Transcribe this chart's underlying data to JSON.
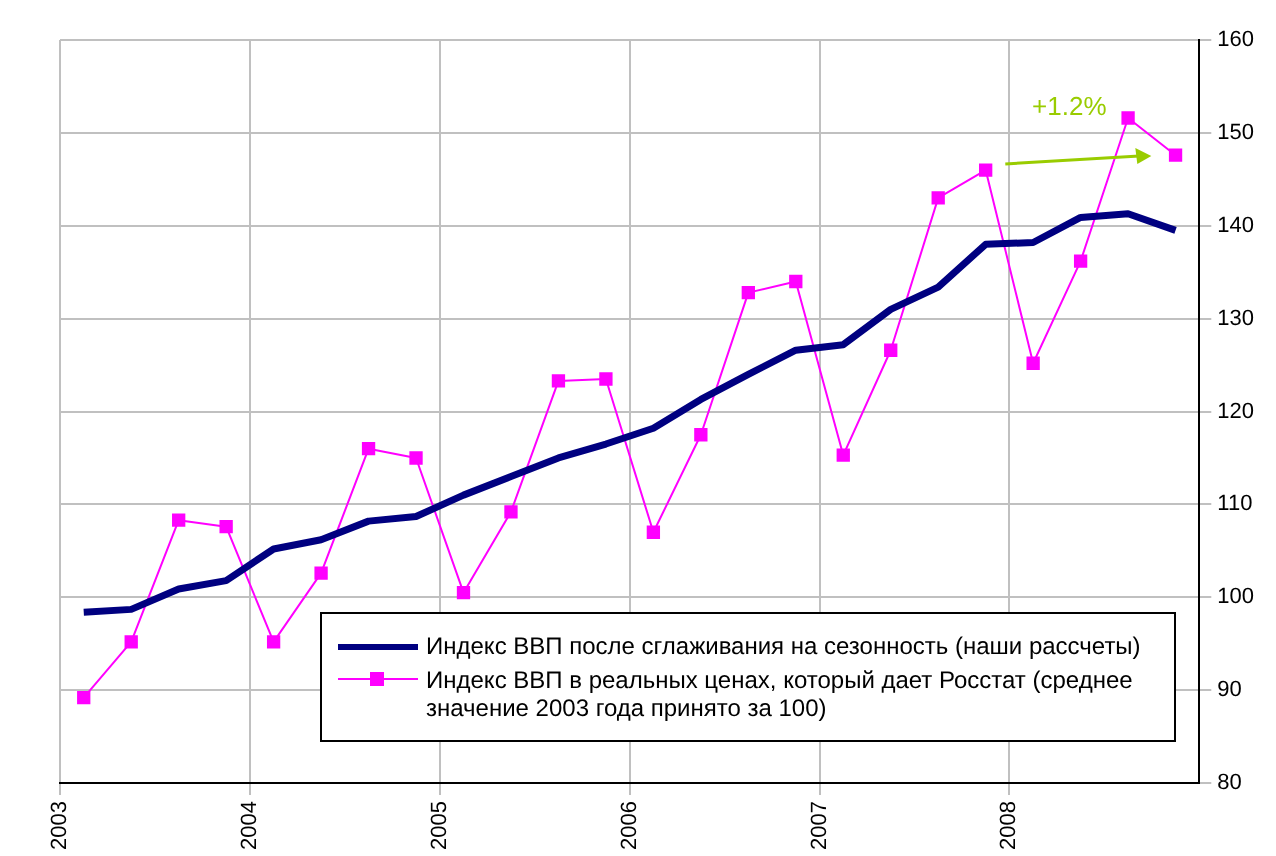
{
  "chart_data": {
    "type": "line",
    "x": [
      2003.125,
      2003.375,
      2003.625,
      2003.875,
      2004.125,
      2004.375,
      2004.625,
      2004.875,
      2005.125,
      2005.375,
      2005.625,
      2005.875,
      2006.125,
      2006.375,
      2006.625,
      2006.875,
      2007.125,
      2007.375,
      2007.625,
      2007.875,
      2008.125,
      2008.375,
      2008.625,
      2008.875
    ],
    "series": [
      {
        "name": "Индекс ВВП после сглаживания на сезонность (наши рассчеты)",
        "color": "#000080",
        "marker": "none",
        "values": [
          98.4,
          98.7,
          100.9,
          101.8,
          105.2,
          106.2,
          108.2,
          108.7,
          111,
          113,
          115,
          116.5,
          118.2,
          121.3,
          124,
          126.6,
          127.2,
          131,
          133.4,
          138,
          138.2,
          140.9,
          141.3,
          139.5
        ]
      },
      {
        "name": "Индекс ВВП в реальных ценах, который дает Росстат (среднее значение 2003 года принято за 100)",
        "color": "#ff00ff",
        "marker": "square",
        "values": [
          89.2,
          95.2,
          108.3,
          107.6,
          95.2,
          102.6,
          116,
          115,
          100.5,
          109.2,
          123.3,
          123.5,
          107,
          117.5,
          132.8,
          134,
          115.3,
          126.6,
          143,
          146,
          125.2,
          136.2,
          151.6,
          147.6
        ]
      }
    ],
    "xlim": [
      2003,
      2009
    ],
    "xticks": [
      2003,
      2004,
      2005,
      2006,
      2007,
      2008
    ],
    "ylim": [
      80,
      160
    ],
    "yticks": [
      80,
      90,
      100,
      110,
      120,
      130,
      140,
      150,
      160
    ],
    "grid": true,
    "legend": "bottom",
    "annotations": [
      "+1.2%"
    ]
  }
}
